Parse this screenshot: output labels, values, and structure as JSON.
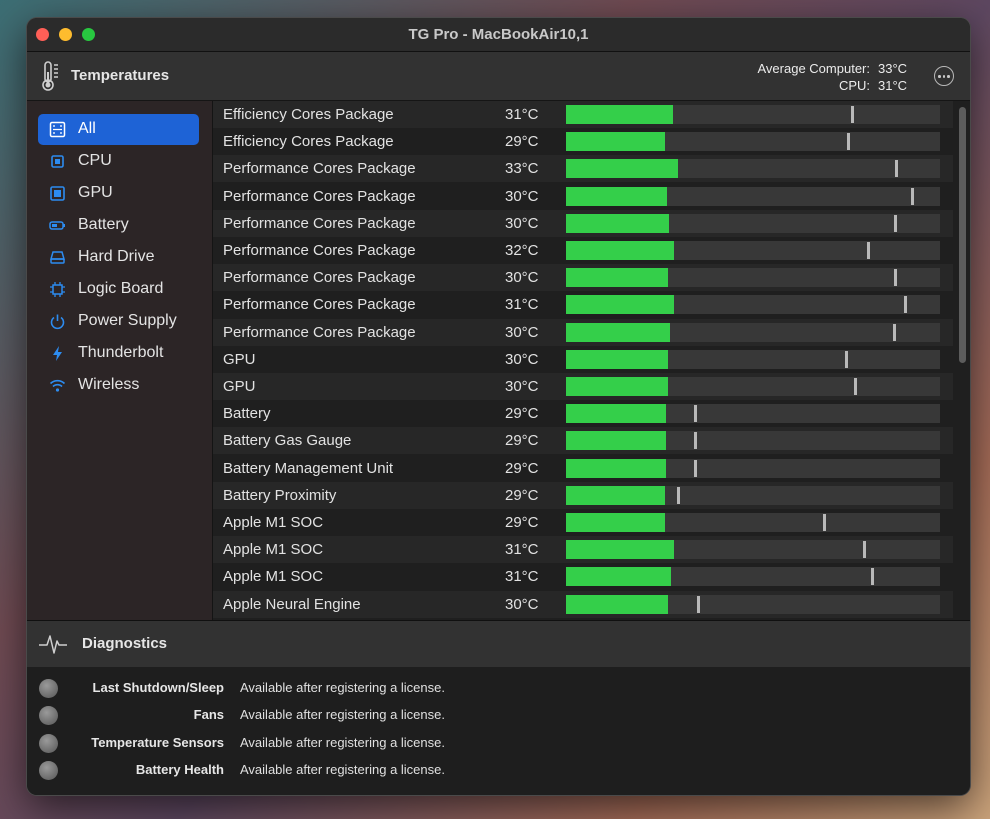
{
  "window": {
    "title": "TG Pro - MacBookAir10,1"
  },
  "header": {
    "title": "Temperatures",
    "average_label": "Average Computer:",
    "average_value": "33°C",
    "cpu_label": "CPU:",
    "cpu_value": "31°C"
  },
  "sidebar": {
    "items": [
      {
        "label": "All",
        "icon": "all-icon",
        "active": true
      },
      {
        "label": "CPU",
        "icon": "cpu-icon"
      },
      {
        "label": "GPU",
        "icon": "gpu-icon"
      },
      {
        "label": "Battery",
        "icon": "battery-icon"
      },
      {
        "label": "Hard Drive",
        "icon": "hard-drive-icon"
      },
      {
        "label": "Logic Board",
        "icon": "logic-board-icon"
      },
      {
        "label": "Power Supply",
        "icon": "power-icon"
      },
      {
        "label": "Thunderbolt",
        "icon": "thunderbolt-icon"
      },
      {
        "label": "Wireless",
        "icon": "wifi-icon"
      }
    ]
  },
  "sensors": [
    {
      "name": "Efficiency Cores Package",
      "temp": "31°C",
      "level": 0.285,
      "max_level": 0.763
    },
    {
      "name": "Efficiency Cores Package",
      "temp": "29°C",
      "level": 0.265,
      "max_level": 0.75
    },
    {
      "name": "Performance Cores Package",
      "temp": "33°C",
      "level": 0.3,
      "max_level": 0.88
    },
    {
      "name": "Performance Cores Package",
      "temp": "30°C",
      "level": 0.27,
      "max_level": 0.922
    },
    {
      "name": "Performance Cores Package",
      "temp": "30°C",
      "level": 0.275,
      "max_level": 0.878
    },
    {
      "name": "Performance Cores Package",
      "temp": "32°C",
      "level": 0.29,
      "max_level": 0.805
    },
    {
      "name": "Performance Cores Package",
      "temp": "30°C",
      "level": 0.273,
      "max_level": 0.878
    },
    {
      "name": "Performance Cores Package",
      "temp": "31°C",
      "level": 0.29,
      "max_level": 0.905
    },
    {
      "name": "Performance Cores Package",
      "temp": "30°C",
      "level": 0.278,
      "max_level": 0.875
    },
    {
      "name": "GPU",
      "temp": "30°C",
      "level": 0.273,
      "max_level": 0.745
    },
    {
      "name": "GPU",
      "temp": "30°C",
      "level": 0.273,
      "max_level": 0.77
    },
    {
      "name": "Battery",
      "temp": "29°C",
      "level": 0.268,
      "max_level": 0.343
    },
    {
      "name": "Battery Gas Gauge",
      "temp": "29°C",
      "level": 0.268,
      "max_level": 0.343
    },
    {
      "name": "Battery Management Unit",
      "temp": "29°C",
      "level": 0.268,
      "max_level": 0.343
    },
    {
      "name": "Battery Proximity",
      "temp": "29°C",
      "level": 0.265,
      "max_level": 0.297
    },
    {
      "name": "Apple M1 SOC",
      "temp": "29°C",
      "level": 0.265,
      "max_level": 0.688
    },
    {
      "name": "Apple M1 SOC",
      "temp": "31°C",
      "level": 0.29,
      "max_level": 0.793
    },
    {
      "name": "Apple M1 SOC",
      "temp": "31°C",
      "level": 0.28,
      "max_level": 0.815
    },
    {
      "name": "Apple Neural Engine",
      "temp": "30°C",
      "level": 0.273,
      "max_level": 0.35
    }
  ],
  "diagnostics": {
    "title": "Diagnostics",
    "items": [
      {
        "label": "Last Shutdown/Sleep",
        "status": "Available after registering a license."
      },
      {
        "label": "Fans",
        "status": "Available after registering a license."
      },
      {
        "label": "Temperature Sensors",
        "status": "Available after registering a license."
      },
      {
        "label": "Battery Health",
        "status": "Available after registering a license."
      }
    ]
  },
  "colors": {
    "accent": "#1e63d6",
    "bar_fill": "#34cf4a",
    "icon_blue": "#2d8cf0"
  }
}
